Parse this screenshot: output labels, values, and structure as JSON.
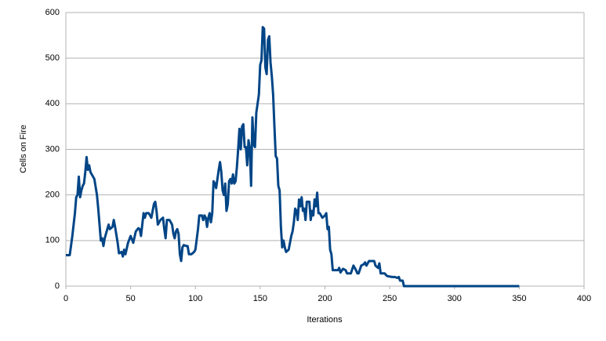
{
  "chart_data": {
    "type": "line",
    "x_label": "Iterations",
    "y_label": "Cells on Fire",
    "color": "#004586",
    "grid": true,
    "xlim": [
      0,
      400
    ],
    "xticks": [
      0,
      50,
      100,
      150,
      200,
      250,
      300,
      350,
      400
    ],
    "ylim": [
      0,
      600
    ],
    "yticks": [
      0,
      100,
      200,
      300,
      400,
      500,
      600
    ],
    "x": [
      0,
      3,
      5,
      7,
      8,
      9,
      10,
      11,
      12,
      13,
      14,
      15,
      16,
      17,
      18,
      19,
      20,
      22,
      24,
      25,
      27,
      28,
      29,
      30,
      32,
      33,
      34,
      36,
      37,
      38,
      40,
      41,
      43,
      44,
      45,
      46,
      48,
      50,
      52,
      54,
      56,
      57,
      58,
      60,
      61,
      62,
      64,
      66,
      68,
      69,
      70,
      71,
      73,
      75,
      76,
      77,
      78,
      80,
      82,
      83,
      84,
      85,
      86,
      87,
      88,
      89,
      90,
      91,
      93,
      94,
      95,
      97,
      99,
      100,
      102,
      103,
      105,
      106,
      107,
      108,
      109,
      110,
      111,
      112,
      113,
      114,
      115,
      116,
      117,
      118,
      119,
      120,
      121,
      122,
      123,
      124,
      125,
      126,
      127,
      128,
      129,
      130,
      131,
      132,
      133,
      134,
      135,
      136,
      137,
      138,
      139,
      140,
      141,
      142,
      143,
      144,
      145,
      146,
      147,
      148,
      149,
      150,
      151,
      152,
      153,
      154,
      155,
      156,
      157,
      158,
      159,
      160,
      161,
      162,
      163,
      164,
      165,
      166,
      167,
      168,
      169,
      170,
      172,
      174,
      175,
      176,
      177,
      178,
      179,
      180,
      181,
      182,
      183,
      184,
      185,
      186,
      188,
      189,
      190,
      191,
      192,
      193,
      194,
      195,
      196,
      198,
      200,
      201,
      202,
      203,
      204,
      205,
      206,
      210,
      211,
      212,
      214,
      216,
      217,
      220,
      222,
      224,
      225,
      226,
      228,
      230,
      231,
      232,
      234,
      238,
      239,
      241,
      242,
      243,
      246,
      248,
      252,
      254,
      256,
      257,
      258,
      260,
      261,
      262,
      350
    ],
    "values": [
      68,
      68,
      110,
      160,
      195,
      200,
      240,
      195,
      210,
      220,
      225,
      250,
      283,
      255,
      265,
      250,
      245,
      235,
      200,
      170,
      100,
      105,
      88,
      105,
      125,
      135,
      125,
      130,
      145,
      130,
      95,
      72,
      75,
      65,
      80,
      70,
      95,
      110,
      95,
      120,
      127,
      125,
      110,
      160,
      150,
      160,
      160,
      150,
      180,
      185,
      165,
      135,
      145,
      150,
      125,
      105,
      145,
      145,
      135,
      115,
      105,
      120,
      125,
      115,
      70,
      55,
      85,
      90,
      88,
      88,
      70,
      70,
      75,
      80,
      125,
      155,
      155,
      145,
      155,
      150,
      130,
      150,
      160,
      140,
      160,
      230,
      225,
      215,
      235,
      255,
      272,
      250,
      210,
      200,
      225,
      165,
      180,
      230,
      235,
      225,
      245,
      225,
      230,
      260,
      300,
      345,
      300,
      350,
      355,
      305,
      305,
      265,
      320,
      300,
      220,
      370,
      310,
      305,
      380,
      400,
      420,
      485,
      495,
      568,
      565,
      480,
      465,
      540,
      548,
      490,
      460,
      420,
      350,
      285,
      280,
      220,
      210,
      130,
      85,
      100,
      85,
      75,
      80,
      110,
      120,
      140,
      170,
      165,
      145,
      190,
      175,
      195,
      165,
      170,
      145,
      185,
      185,
      145,
      165,
      155,
      190,
      175,
      205,
      160,
      160,
      150,
      155,
      160,
      125,
      130,
      80,
      70,
      35,
      35,
      40,
      30,
      38,
      35,
      28,
      28,
      45,
      35,
      28,
      28,
      45,
      48,
      52,
      45,
      55,
      55,
      45,
      40,
      50,
      28,
      28,
      22,
      20,
      20,
      18,
      20,
      12,
      12,
      0,
      0,
      0
    ]
  }
}
